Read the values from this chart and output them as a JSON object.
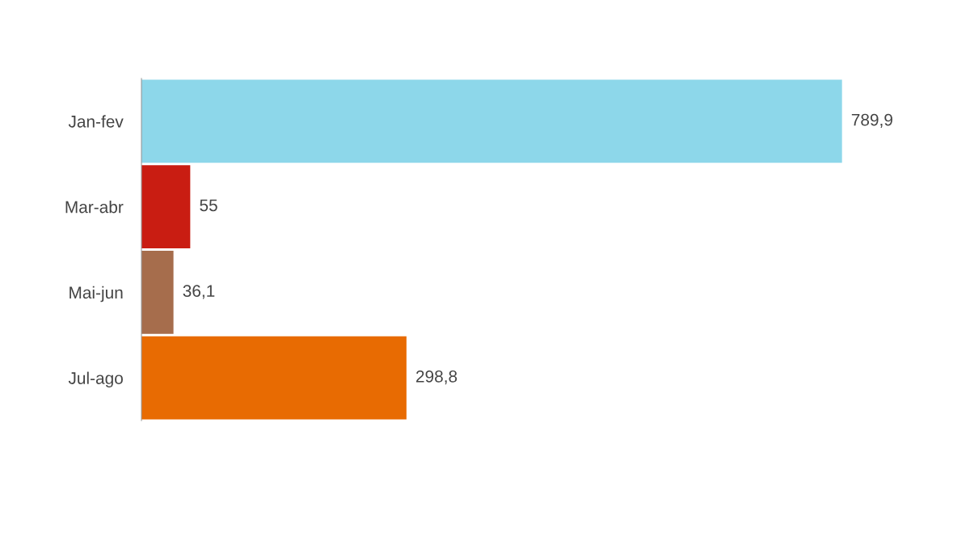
{
  "chart_data": {
    "type": "bar",
    "orientation": "horizontal",
    "categories": [
      "Jan-fev",
      "Mar-abr",
      "Mai-jun",
      "Jul-ago"
    ],
    "values": [
      789.9,
      55,
      36.1,
      298.8
    ],
    "colors": [
      "#8dd7ea",
      "#c91d12",
      "#a66d4c",
      "#e86b02"
    ],
    "value_labels": [
      "789,9",
      "55",
      "36,1",
      "298,8"
    ],
    "tick_labels": "y",
    "grid": false,
    "legend": false
  }
}
